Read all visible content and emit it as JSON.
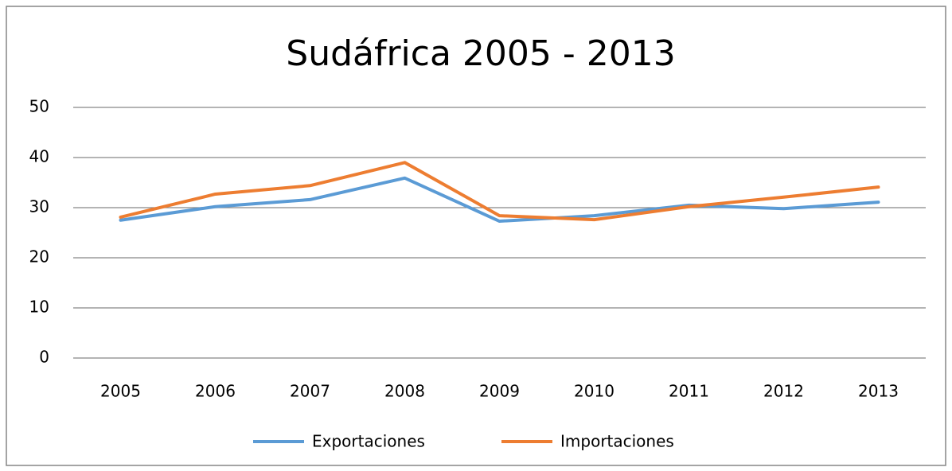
{
  "chart_data": {
    "type": "line",
    "title": "Sudáfrica 2005 - 2013",
    "categories": [
      "2005",
      "2006",
      "2007",
      "2008",
      "2009",
      "2010",
      "2011",
      "2012",
      "2013"
    ],
    "series": [
      {
        "name": "Exportaciones",
        "color": "#5b9bd5",
        "values": [
          27.5,
          30.2,
          31.6,
          35.9,
          27.3,
          28.4,
          30.5,
          29.8,
          31.1
        ]
      },
      {
        "name": "Importaciones",
        "color": "#ed7d31",
        "values": [
          28.1,
          32.7,
          34.4,
          39.0,
          28.4,
          27.6,
          30.2,
          32.1,
          34.1
        ]
      }
    ],
    "ylim": [
      0,
      50
    ],
    "yticks": [
      0,
      10,
      20,
      30,
      40,
      50
    ],
    "grid": true,
    "legend": "bottom"
  }
}
